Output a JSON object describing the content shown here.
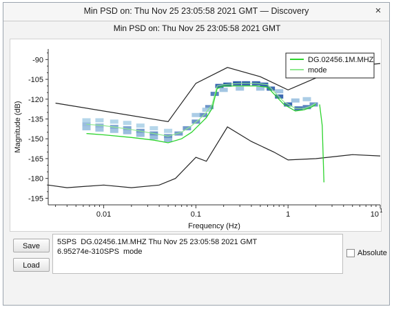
{
  "window": {
    "title": "Min PSD on: Thu Nov 25 23:05:58 2021 GMT — Discovery",
    "close_glyph": "×"
  },
  "plot_title": "Min PSD on: Thu Nov 25 23:05:58 2021 GMT",
  "buttons": {
    "save": "Save",
    "load": "Load"
  },
  "info_lines": [
    "5SPS  DG.02456.1M.MHZ Thu Nov 25 23:05:58 2021 GMT",
    "6.95274e-310SPS  mode"
  ],
  "absolute_label": "Absolute",
  "colors": {
    "series": "#2bd32b",
    "mode": "#8fe88f",
    "model": "#222222",
    "density_low": "#d6f6fb",
    "density_high": "#0b3f9c"
  },
  "chart_data": {
    "type": "line",
    "title": "",
    "xlabel": "Frequency (Hz)",
    "ylabel": "Magnitude (dB)",
    "xscale": "log",
    "xlim": [
      0.0025,
      10
    ],
    "ylim": [
      -200,
      -82
    ],
    "xticks": [
      {
        "v": 0.01,
        "label": "0.01"
      },
      {
        "v": 0.1,
        "label": "0.1"
      },
      {
        "v": 1,
        "label": "1"
      },
      {
        "v": 10,
        "label": "10"
      }
    ],
    "xtick_exp": "1",
    "yticks": [
      -90,
      -105,
      -120,
      -135,
      -150,
      -165,
      -180,
      -195
    ],
    "legend": {
      "placement": "top-right",
      "entries": [
        "DG.02456.1M.MHZ",
        "mode"
      ]
    },
    "series": [
      {
        "name": "DG.02456.1M.MHZ",
        "role": "data",
        "points": [
          [
            0.0065,
            -146
          ],
          [
            0.01,
            -147
          ],
          [
            0.02,
            -149
          ],
          [
            0.035,
            -151
          ],
          [
            0.05,
            -153
          ],
          [
            0.07,
            -150
          ],
          [
            0.09,
            -145
          ],
          [
            0.11,
            -139
          ],
          [
            0.13,
            -134
          ],
          [
            0.15,
            -127
          ],
          [
            0.17,
            -112
          ],
          [
            0.2,
            -110
          ],
          [
            0.3,
            -110
          ],
          [
            0.45,
            -110
          ],
          [
            0.6,
            -111
          ],
          [
            0.7,
            -116
          ],
          [
            0.9,
            -124
          ],
          [
            1.2,
            -129
          ],
          [
            1.5,
            -128
          ],
          [
            1.8,
            -126
          ],
          [
            2.0,
            -124
          ]
        ]
      },
      {
        "name": "mode",
        "role": "mode",
        "points": [
          [
            0.0065,
            -139
          ],
          [
            0.01,
            -140
          ],
          [
            0.02,
            -143
          ],
          [
            0.035,
            -146
          ],
          [
            0.05,
            -148
          ],
          [
            0.07,
            -145
          ],
          [
            0.09,
            -140
          ],
          [
            0.11,
            -135
          ],
          [
            0.13,
            -130
          ],
          [
            0.15,
            -124
          ],
          [
            0.17,
            -110
          ],
          [
            0.2,
            -109
          ],
          [
            0.3,
            -108
          ],
          [
            0.45,
            -108
          ],
          [
            0.6,
            -109
          ],
          [
            0.7,
            -114
          ],
          [
            0.9,
            -122
          ],
          [
            1.2,
            -127
          ],
          [
            1.5,
            -127
          ],
          [
            1.8,
            -125
          ],
          [
            2.0,
            -123
          ]
        ]
      },
      {
        "role": "high-noise-model",
        "points": [
          [
            0.003,
            -123
          ],
          [
            0.05,
            -137
          ],
          [
            0.1,
            -108
          ],
          [
            0.22,
            -96
          ],
          [
            0.5,
            -103
          ],
          [
            1.0,
            -113
          ],
          [
            2.0,
            -104
          ],
          [
            5.0,
            -95
          ],
          [
            10,
            -93
          ]
        ]
      },
      {
        "role": "low-noise-model",
        "points": [
          [
            0.0025,
            -185
          ],
          [
            0.004,
            -187
          ],
          [
            0.01,
            -185
          ],
          [
            0.02,
            -187
          ],
          [
            0.04,
            -185
          ],
          [
            0.06,
            -180
          ],
          [
            0.1,
            -164
          ],
          [
            0.13,
            -167
          ],
          [
            0.22,
            -141
          ],
          [
            0.4,
            -152
          ],
          [
            0.7,
            -160
          ],
          [
            1.0,
            -166
          ],
          [
            2.0,
            -165
          ],
          [
            5.0,
            -162
          ],
          [
            10,
            -163
          ]
        ]
      }
    ],
    "density": [
      {
        "x": 0.0065,
        "y": -139,
        "w": 0.35
      },
      {
        "x": 0.0065,
        "y": -136,
        "w": 0.2
      },
      {
        "x": 0.0065,
        "y": -142,
        "w": 0.3
      },
      {
        "x": 0.009,
        "y": -140,
        "w": 0.4
      },
      {
        "x": 0.009,
        "y": -136,
        "w": 0.2
      },
      {
        "x": 0.009,
        "y": -143,
        "w": 0.3
      },
      {
        "x": 0.013,
        "y": -141,
        "w": 0.45
      },
      {
        "x": 0.013,
        "y": -137,
        "w": 0.2
      },
      {
        "x": 0.013,
        "y": -144,
        "w": 0.3
      },
      {
        "x": 0.018,
        "y": -142,
        "w": 0.5
      },
      {
        "x": 0.018,
        "y": -138,
        "w": 0.2
      },
      {
        "x": 0.018,
        "y": -145,
        "w": 0.35
      },
      {
        "x": 0.025,
        "y": -144,
        "w": 0.55
      },
      {
        "x": 0.025,
        "y": -140,
        "w": 0.2
      },
      {
        "x": 0.025,
        "y": -147,
        "w": 0.35
      },
      {
        "x": 0.035,
        "y": -146,
        "w": 0.6
      },
      {
        "x": 0.035,
        "y": -142,
        "w": 0.2
      },
      {
        "x": 0.035,
        "y": -149,
        "w": 0.35
      },
      {
        "x": 0.05,
        "y": -148,
        "w": 0.6
      },
      {
        "x": 0.05,
        "y": -144,
        "w": 0.2
      },
      {
        "x": 0.05,
        "y": -151,
        "w": 0.35
      },
      {
        "x": 0.065,
        "y": -146,
        "w": 0.55
      },
      {
        "x": 0.08,
        "y": -142,
        "w": 0.55
      },
      {
        "x": 0.1,
        "y": -137,
        "w": 0.6
      },
      {
        "x": 0.12,
        "y": -132,
        "w": 0.6
      },
      {
        "x": 0.14,
        "y": -126,
        "w": 0.6
      },
      {
        "x": 0.16,
        "y": -116,
        "w": 0.7
      },
      {
        "x": 0.18,
        "y": -110,
        "w": 0.9
      },
      {
        "x": 0.22,
        "y": -109,
        "w": 0.95
      },
      {
        "x": 0.28,
        "y": -108,
        "w": 0.95
      },
      {
        "x": 0.35,
        "y": -108,
        "w": 0.95
      },
      {
        "x": 0.45,
        "y": -108,
        "w": 0.9
      },
      {
        "x": 0.55,
        "y": -109,
        "w": 0.9
      },
      {
        "x": 0.65,
        "y": -112,
        "w": 0.85
      },
      {
        "x": 0.8,
        "y": -118,
        "w": 0.85
      },
      {
        "x": 1.0,
        "y": -124,
        "w": 0.85
      },
      {
        "x": 1.3,
        "y": -127,
        "w": 0.8
      },
      {
        "x": 1.6,
        "y": -126,
        "w": 0.7
      },
      {
        "x": 1.9,
        "y": -124,
        "w": 0.6
      },
      {
        "x": 0.2,
        "y": -113,
        "w": 0.3
      },
      {
        "x": 0.3,
        "y": -112,
        "w": 0.3
      },
      {
        "x": 0.5,
        "y": -112,
        "w": 0.3
      },
      {
        "x": 0.8,
        "y": -114,
        "w": 0.3
      },
      {
        "x": 1.2,
        "y": -121,
        "w": 0.3
      },
      {
        "x": 1.6,
        "y": -120,
        "w": 0.25
      },
      {
        "x": 0.1,
        "y": -132,
        "w": 0.25
      },
      {
        "x": 0.13,
        "y": -128,
        "w": 0.25
      }
    ]
  }
}
